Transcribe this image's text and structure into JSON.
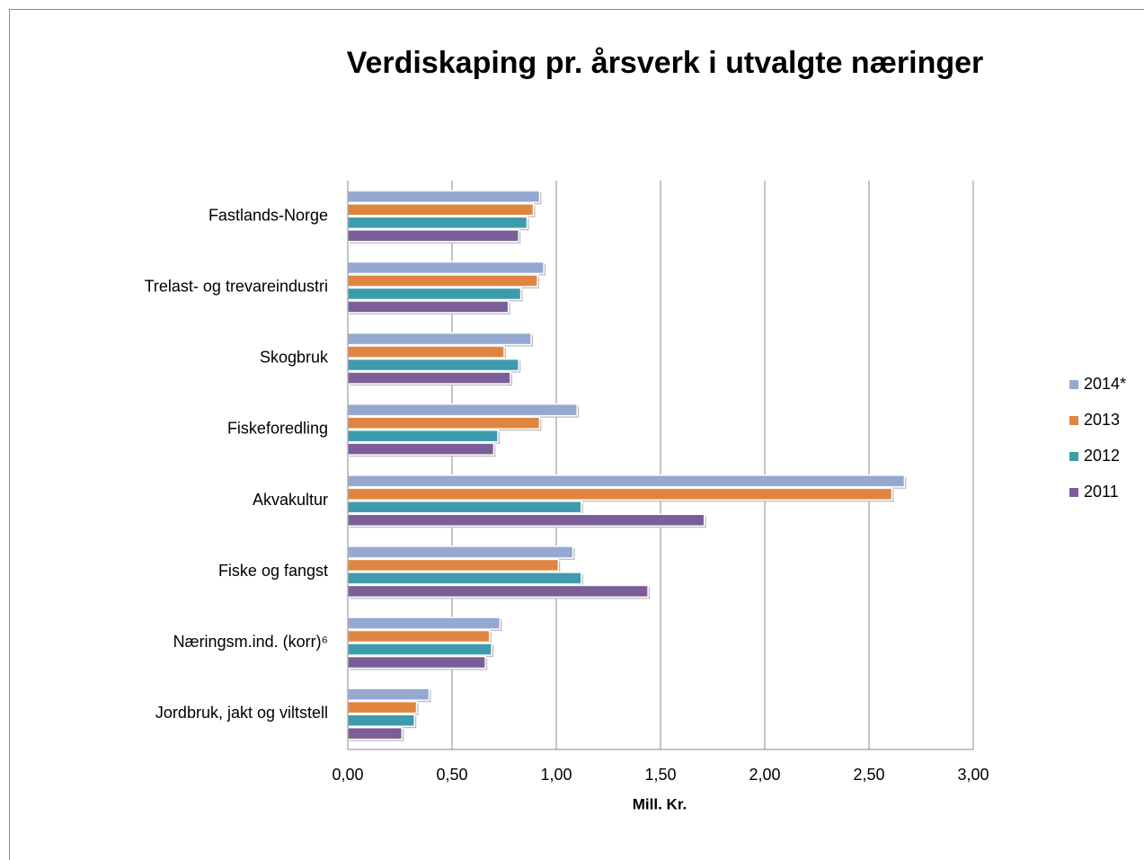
{
  "chart_data": {
    "type": "bar",
    "orientation": "horizontal",
    "title": "Verdiskaping pr. årsverk i utvalgte næringer",
    "x_label": "Mill. Kr.",
    "categories": [
      "Fastlands-Norge",
      "Trelast- og trevareindustri",
      "Skogbruk",
      "Fiskeforedling",
      "Akvakultur",
      "Fiske og fangst",
      "Næringsm.ind. (korr)⁶",
      "Jordbruk, jakt og viltstell"
    ],
    "series": [
      {
        "name": "2014*",
        "color": "#95a8d2",
        "values": [
          0.92,
          0.94,
          0.88,
          1.1,
          2.67,
          1.08,
          0.73,
          0.39
        ]
      },
      {
        "name": "2013",
        "color": "#e0853f",
        "values": [
          0.89,
          0.91,
          0.75,
          0.92,
          2.61,
          1.01,
          0.68,
          0.33
        ]
      },
      {
        "name": "2012",
        "color": "#3e9bae",
        "values": [
          0.86,
          0.83,
          0.82,
          0.72,
          1.12,
          1.12,
          0.69,
          0.32
        ]
      },
      {
        "name": "2011",
        "color": "#7b5e97",
        "values": [
          0.82,
          0.77,
          0.78,
          0.7,
          1.71,
          1.44,
          0.66,
          0.26
        ]
      }
    ],
    "xlim": [
      0,
      3
    ],
    "xticks": [
      {
        "value": 0,
        "label": "0,00"
      },
      {
        "value": 0.5,
        "label": "0,50"
      },
      {
        "value": 1,
        "label": "1,00"
      },
      {
        "value": 1.5,
        "label": "1,50"
      },
      {
        "value": 2,
        "label": "2,00"
      },
      {
        "value": 2.5,
        "label": "2,50"
      },
      {
        "value": 3,
        "label": "3,00"
      }
    ],
    "grid": true,
    "legend": "right"
  }
}
